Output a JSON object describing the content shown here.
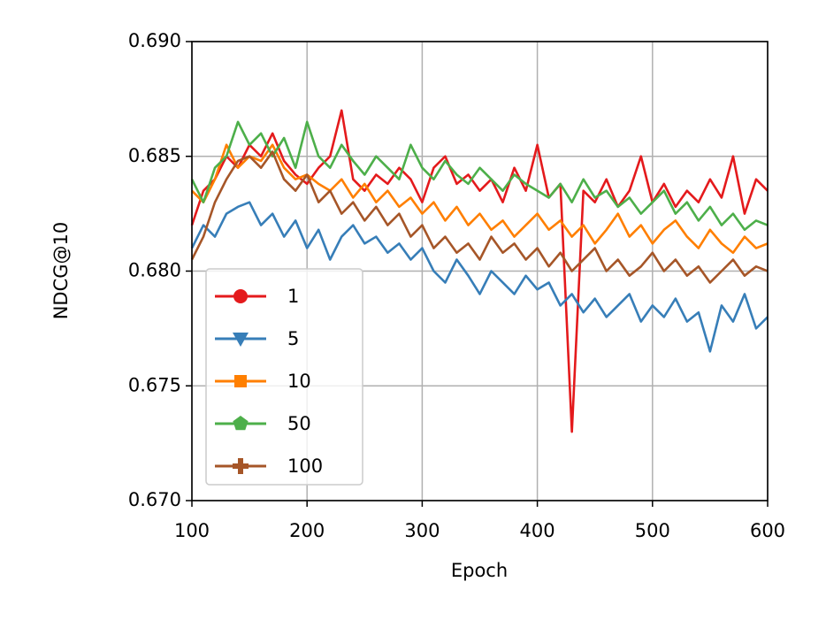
{
  "chart_data": {
    "type": "line",
    "xlabel": "Epoch",
    "ylabel": "NDCG@10",
    "x": [
      100,
      110,
      120,
      130,
      140,
      150,
      160,
      170,
      180,
      190,
      200,
      210,
      220,
      230,
      240,
      250,
      260,
      270,
      280,
      290,
      300,
      310,
      320,
      330,
      340,
      350,
      360,
      370,
      380,
      390,
      400,
      410,
      420,
      430,
      440,
      450,
      460,
      470,
      480,
      490,
      500,
      510,
      520,
      530,
      540,
      550,
      560,
      570,
      580,
      590,
      600
    ],
    "series": [
      {
        "name": "1",
        "color": "#e41a1c",
        "marker": "circle",
        "values": [
          0.682,
          0.6835,
          0.684,
          0.685,
          0.6845,
          0.6855,
          0.685,
          0.686,
          0.6848,
          0.6842,
          0.6838,
          0.6845,
          0.685,
          0.687,
          0.684,
          0.6835,
          0.6842,
          0.6838,
          0.6845,
          0.684,
          0.683,
          0.6845,
          0.685,
          0.6838,
          0.6842,
          0.6835,
          0.684,
          0.683,
          0.6845,
          0.6835,
          0.6855,
          0.6832,
          0.6838,
          0.673,
          0.6835,
          0.683,
          0.684,
          0.6828,
          0.6835,
          0.685,
          0.683,
          0.6838,
          0.6828,
          0.6835,
          0.683,
          0.684,
          0.6832,
          0.685,
          0.6825,
          0.684,
          0.6835
        ]
      },
      {
        "name": "5",
        "color": "#377eb8",
        "marker": "triangle-down",
        "values": [
          0.681,
          0.682,
          0.6815,
          0.6825,
          0.6828,
          0.683,
          0.682,
          0.6825,
          0.6815,
          0.6822,
          0.681,
          0.6818,
          0.6805,
          0.6815,
          0.682,
          0.6812,
          0.6815,
          0.6808,
          0.6812,
          0.6805,
          0.681,
          0.68,
          0.6795,
          0.6805,
          0.6798,
          0.679,
          0.68,
          0.6795,
          0.679,
          0.6798,
          0.6792,
          0.6795,
          0.6785,
          0.679,
          0.6782,
          0.6788,
          0.678,
          0.6785,
          0.679,
          0.6778,
          0.6785,
          0.678,
          0.6788,
          0.6778,
          0.6782,
          0.6765,
          0.6785,
          0.6778,
          0.679,
          0.6775,
          0.678
        ]
      },
      {
        "name": "10",
        "color": "#ff7f00",
        "marker": "square",
        "values": [
          0.6835,
          0.683,
          0.684,
          0.6855,
          0.6845,
          0.685,
          0.6848,
          0.6855,
          0.6845,
          0.684,
          0.6842,
          0.6838,
          0.6835,
          0.684,
          0.6832,
          0.6838,
          0.683,
          0.6835,
          0.6828,
          0.6832,
          0.6825,
          0.683,
          0.6822,
          0.6828,
          0.682,
          0.6825,
          0.6818,
          0.6822,
          0.6815,
          0.682,
          0.6825,
          0.6818,
          0.6822,
          0.6815,
          0.682,
          0.6812,
          0.6818,
          0.6825,
          0.6815,
          0.682,
          0.6812,
          0.6818,
          0.6822,
          0.6815,
          0.681,
          0.6818,
          0.6812,
          0.6808,
          0.6815,
          0.681,
          0.6812
        ]
      },
      {
        "name": "50",
        "color": "#4daf4a",
        "marker": "pentagon",
        "values": [
          0.684,
          0.683,
          0.6845,
          0.685,
          0.6865,
          0.6855,
          0.686,
          0.685,
          0.6858,
          0.6845,
          0.6865,
          0.685,
          0.6845,
          0.6855,
          0.6848,
          0.6842,
          0.685,
          0.6845,
          0.684,
          0.6855,
          0.6845,
          0.684,
          0.6848,
          0.6842,
          0.6838,
          0.6845,
          0.684,
          0.6835,
          0.6842,
          0.6838,
          0.6835,
          0.6832,
          0.6838,
          0.683,
          0.684,
          0.6832,
          0.6835,
          0.6828,
          0.6832,
          0.6825,
          0.683,
          0.6835,
          0.6825,
          0.683,
          0.6822,
          0.6828,
          0.682,
          0.6825,
          0.6818,
          0.6822,
          0.682
        ]
      },
      {
        "name": "100",
        "color": "#a65628",
        "marker": "plus",
        "values": [
          0.6805,
          0.6815,
          0.683,
          0.684,
          0.6848,
          0.685,
          0.6845,
          0.6852,
          0.684,
          0.6835,
          0.6842,
          0.683,
          0.6835,
          0.6825,
          0.683,
          0.6822,
          0.6828,
          0.682,
          0.6825,
          0.6815,
          0.682,
          0.681,
          0.6815,
          0.6808,
          0.6812,
          0.6805,
          0.6815,
          0.6808,
          0.6812,
          0.6805,
          0.681,
          0.6802,
          0.6808,
          0.68,
          0.6805,
          0.681,
          0.68,
          0.6805,
          0.6798,
          0.6802,
          0.6808,
          0.68,
          0.6805,
          0.6798,
          0.6802,
          0.6795,
          0.68,
          0.6805,
          0.6798,
          0.6802,
          0.68
        ]
      }
    ],
    "xlim": [
      100,
      600
    ],
    "xticks": [
      100,
      200,
      300,
      400,
      500,
      600
    ],
    "ylim": [
      0.67,
      0.69
    ],
    "yticks": [
      {
        "value": 0.67,
        "label": "0.670"
      },
      {
        "value": 0.675,
        "label": "0.675"
      },
      {
        "value": 0.68,
        "label": "0.680"
      },
      {
        "value": 0.685,
        "label": "0.685"
      },
      {
        "value": 0.69,
        "label": "0.690"
      }
    ],
    "grid": true,
    "legend": "lower left"
  }
}
